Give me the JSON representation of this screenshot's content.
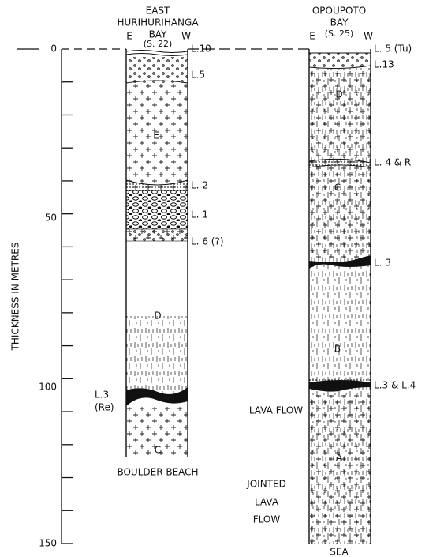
{
  "axis": {
    "label": "THICKNESS IN METRES",
    "ticks": [
      "0",
      "50",
      "100",
      "150"
    ]
  },
  "left_section": {
    "title": [
      "EAST",
      "HURIHURIHANGA",
      "BAY",
      "(S. 22)"
    ],
    "east": "E",
    "west": "W",
    "layers": [
      "L.10",
      "L.5",
      "L. 2",
      "L. 1",
      "L. 6 (?)"
    ],
    "units": [
      "E",
      "D",
      "C"
    ],
    "side_label": [
      "L.3",
      "(Re)"
    ],
    "base": "BOULDER BEACH"
  },
  "middle_label": "LAVA FLOW",
  "right_section": {
    "title": [
      "OPOUPOTO",
      "BAY",
      "(S. 25)"
    ],
    "east": "E",
    "west": "W",
    "layers": [
      "L. 5 (Tu)",
      "L.13",
      "L. 4 & R",
      "L. 3",
      "L.3 & L.4"
    ],
    "units": [
      "D",
      "C",
      "B",
      "A"
    ],
    "side_label": [
      "JOINTED",
      "LAVA",
      "FLOW"
    ],
    "base": "SEA"
  }
}
